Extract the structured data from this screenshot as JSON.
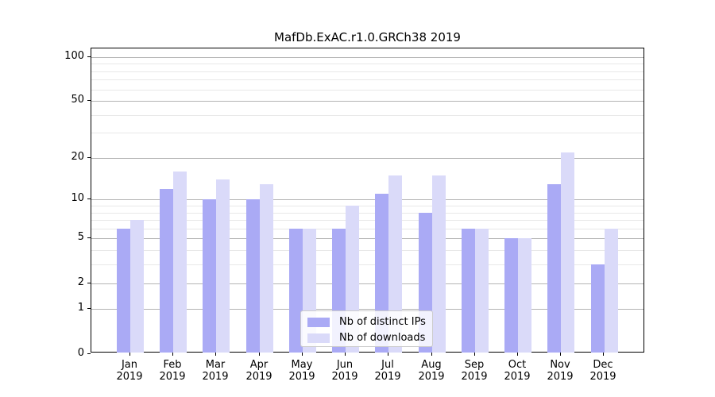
{
  "chart_data": {
    "type": "bar",
    "title": "MafDb.ExAC.r1.0.GRCh38 2019",
    "categories": [
      "Jan",
      "Feb",
      "Mar",
      "Apr",
      "May",
      "Jun",
      "Jul",
      "Aug",
      "Sep",
      "Oct",
      "Nov",
      "Dec"
    ],
    "category_year": "2019",
    "series": [
      {
        "name": "Nb of distinct IPs",
        "color": "#aaaaf5",
        "values": [
          6,
          12,
          10,
          10,
          6,
          6,
          11,
          8,
          6,
          5,
          13,
          3
        ]
      },
      {
        "name": "Nb of downloads",
        "color": "#dadaf9",
        "values": [
          7,
          16,
          14,
          13,
          6,
          9,
          15,
          15,
          6,
          5,
          22,
          6
        ]
      }
    ],
    "xlabel": "",
    "ylabel": "",
    "y_scale": "log1p",
    "ylim": [
      0,
      100
    ],
    "y_ticks": [
      0,
      1,
      2,
      5,
      10,
      20,
      50,
      100
    ],
    "y_minor_gridlines": [
      3,
      4,
      6,
      7,
      8,
      9,
      30,
      40,
      60,
      70,
      80,
      90
    ],
    "grid": "on",
    "legend_position": "lower center inside plot",
    "colors": {
      "major_grid": "#b4b4b4",
      "minor_grid": "#e8e8e8",
      "axis": "#000000",
      "text": "#000000"
    }
  }
}
